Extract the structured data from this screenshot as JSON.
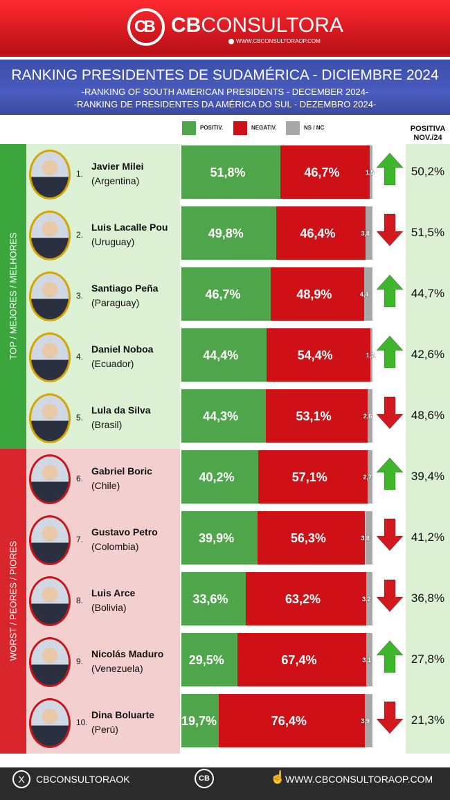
{
  "header": {
    "brand_bold": "CB",
    "brand_light": "CONSULTORA",
    "brand_url": "WWW.CBCONSULTORAOP.COM",
    "title": "RANKING PRESIDENTES DE SUDAMÉRICA - DICIEMBRE  2024",
    "subtitle_en": "-RANKING OF SOUTH AMERICAN PRESIDENTS - DECEMBER 2024-",
    "subtitle_pt": "-RANKING DE PRESIDENTES DA AMÉRICA DO SUL - DEZEMBRO 2024-"
  },
  "legend": {
    "positive": "POSITIV.",
    "negative": "NEGATIV.",
    "ns": "NS / NC"
  },
  "previous_header": {
    "line1": "POSITIVA",
    "line2": "NOV./24"
  },
  "groups": {
    "top": "TOP / MEJORES / MELHORES",
    "worst": "WORST / PEORES / PIORES"
  },
  "colors": {
    "positive": "#4fa64a",
    "negative": "#cf1017",
    "ns": "#a8a8a8",
    "arrow_up": "#3fb52c",
    "arrow_down": "#d11a1f"
  },
  "chart_data": {
    "type": "bar",
    "stacked": true,
    "orientation": "horizontal",
    "title": "RANKING PRESIDENTES DE SUDAMÉRICA - DICIEMBRE  2024",
    "categories": [
      "Javier Milei",
      "Luis Lacalle Pou",
      "Santiago Peña",
      "Daniel Noboa",
      "Lula da Silva",
      "Gabriel Boric",
      "Gustavo Petro",
      "Luis Arce",
      "Nicolás Maduro",
      "Dina Boluarte"
    ],
    "series": [
      {
        "name": "POSITIV.",
        "values": [
          51.8,
          49.8,
          46.7,
          44.4,
          44.3,
          40.2,
          39.9,
          33.6,
          29.5,
          19.7
        ]
      },
      {
        "name": "NEGATIV.",
        "values": [
          46.7,
          46.4,
          48.9,
          54.4,
          53.1,
          57.1,
          56.3,
          63.2,
          67.4,
          76.4
        ]
      },
      {
        "name": "NS / NC",
        "values": [
          1.5,
          3.8,
          4.4,
          1.2,
          2.6,
          2.7,
          3.8,
          3.2,
          3.1,
          3.9
        ]
      }
    ],
    "xlim": [
      0,
      100
    ],
    "legend": "top"
  },
  "rows": [
    {
      "rank": "1.",
      "name": "Javier Milei",
      "country": "(Argentina)",
      "pos": 51.8,
      "neg": 46.7,
      "ns": 1.5,
      "pos_label": "51,8%",
      "neg_label": "46,7%",
      "ns_label": "1,5",
      "trend": "up",
      "prev": "50,2%"
    },
    {
      "rank": "2.",
      "name": "Luis Lacalle Pou",
      "country": "(Uruguay)",
      "pos": 49.8,
      "neg": 46.4,
      "ns": 3.8,
      "pos_label": "49,8%",
      "neg_label": "46,4%",
      "ns_label": "3,8",
      "trend": "down",
      "prev": "51,5%"
    },
    {
      "rank": "3.",
      "name": "Santiago Peña",
      "country": "(Paraguay)",
      "pos": 46.7,
      "neg": 48.9,
      "ns": 4.4,
      "pos_label": "46,7%",
      "neg_label": "48,9%",
      "ns_label": "4,4",
      "trend": "up",
      "prev": "44,7%"
    },
    {
      "rank": "4.",
      "name": "Daniel Noboa",
      "country": "(Ecuador)",
      "pos": 44.4,
      "neg": 54.4,
      "ns": 1.2,
      "pos_label": "44,4%",
      "neg_label": "54,4%",
      "ns_label": "1,2",
      "trend": "up",
      "prev": "42,6%"
    },
    {
      "rank": "5.",
      "name": "Lula da Silva",
      "country": "(Brasil)",
      "pos": 44.3,
      "neg": 53.1,
      "ns": 2.6,
      "pos_label": "44,3%",
      "neg_label": "53,1%",
      "ns_label": "2,6",
      "trend": "down",
      "prev": "48,6%"
    },
    {
      "rank": "6.",
      "name": "Gabriel Boric",
      "country": "(Chile)",
      "pos": 40.2,
      "neg": 57.1,
      "ns": 2.7,
      "pos_label": "40,2%",
      "neg_label": "57,1%",
      "ns_label": "2,7",
      "trend": "up",
      "prev": "39,4%"
    },
    {
      "rank": "7.",
      "name": "Gustavo Petro",
      "country": "(Colombia)",
      "pos": 39.9,
      "neg": 56.3,
      "ns": 3.8,
      "pos_label": "39,9%",
      "neg_label": "56,3%",
      "ns_label": "3,8",
      "trend": "down",
      "prev": "41,2%"
    },
    {
      "rank": "8.",
      "name": "Luis Arce",
      "country": "(Bolivia)",
      "pos": 33.6,
      "neg": 63.2,
      "ns": 3.2,
      "pos_label": "33,6%",
      "neg_label": "63,2%",
      "ns_label": "3,2",
      "trend": "down",
      "prev": "36,8%"
    },
    {
      "rank": "9.",
      "name": "Nicolás Maduro",
      "country": "(Venezuela)",
      "pos": 29.5,
      "neg": 67.4,
      "ns": 3.1,
      "pos_label": "29,5%",
      "neg_label": "67,4%",
      "ns_label": "3,1",
      "trend": "up",
      "prev": "27,8%"
    },
    {
      "rank": "10.",
      "name": "Dina Boluarte",
      "country": "(Perú)",
      "pos": 19.7,
      "neg": 76.4,
      "ns": 3.9,
      "pos_label": "19,7%",
      "neg_label": "76,4%",
      "ns_label": "3,9",
      "trend": "down",
      "prev": "21,3%"
    }
  ],
  "footer": {
    "x_icon": "x-logo-icon",
    "handle": "CBCONSULTORAOK",
    "logo_text": "CB",
    "url": "WWW.CBCONSULTORAOP.COM"
  }
}
